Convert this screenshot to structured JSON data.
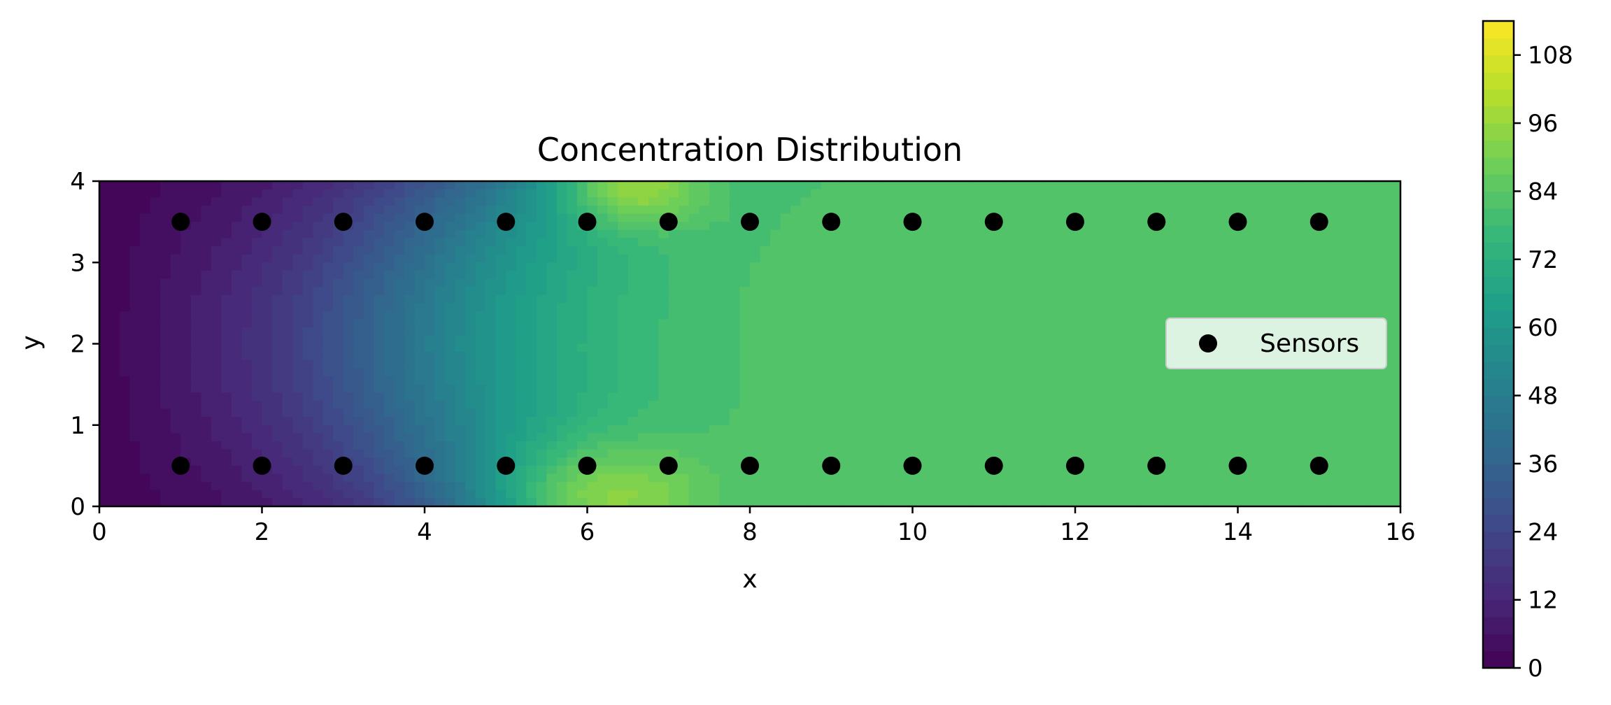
{
  "chart_data": {
    "type": "heatmap",
    "subtype": "filled-contour",
    "title": "Concentration Distribution",
    "xlabel": "x",
    "ylabel": "y",
    "xlim": [
      0,
      16
    ],
    "ylim": [
      0,
      4
    ],
    "x_ticks": [
      0,
      2,
      4,
      6,
      8,
      10,
      12,
      14,
      16
    ],
    "y_ticks": [
      0,
      1,
      2,
      3,
      4
    ],
    "colormap": "viridis",
    "colorbar": {
      "range": [
        0,
        114
      ],
      "ticks": [
        0,
        12,
        24,
        36,
        48,
        60,
        72,
        84,
        96,
        108
      ]
    },
    "field": {
      "far_field_value": 84,
      "inlet_value": 0,
      "peak_value": 112,
      "peak_locations": [
        [
          6.5,
          4.0
        ],
        [
          6.0,
          0.0
        ]
      ]
    },
    "series": [
      {
        "name": "Sensors",
        "marker": "circle",
        "color": "#000000",
        "points": [
          [
            1,
            3.5
          ],
          [
            2,
            3.5
          ],
          [
            3,
            3.5
          ],
          [
            4,
            3.5
          ],
          [
            5,
            3.5
          ],
          [
            6,
            3.5
          ],
          [
            7,
            3.5
          ],
          [
            8,
            3.5
          ],
          [
            9,
            3.5
          ],
          [
            10,
            3.5
          ],
          [
            11,
            3.5
          ],
          [
            12,
            3.5
          ],
          [
            13,
            3.5
          ],
          [
            14,
            3.5
          ],
          [
            15,
            3.5
          ],
          [
            1,
            0.5
          ],
          [
            2,
            0.5
          ],
          [
            3,
            0.5
          ],
          [
            4,
            0.5
          ],
          [
            5,
            0.5
          ],
          [
            6,
            0.5
          ],
          [
            7,
            0.5
          ],
          [
            8,
            0.5
          ],
          [
            9,
            0.5
          ],
          [
            10,
            0.5
          ],
          [
            11,
            0.5
          ],
          [
            12,
            0.5
          ],
          [
            13,
            0.5
          ],
          [
            14,
            0.5
          ],
          [
            15,
            0.5
          ]
        ]
      }
    ],
    "legend": {
      "placement": "center-right",
      "entries": [
        "Sensors"
      ]
    },
    "grid": false
  }
}
